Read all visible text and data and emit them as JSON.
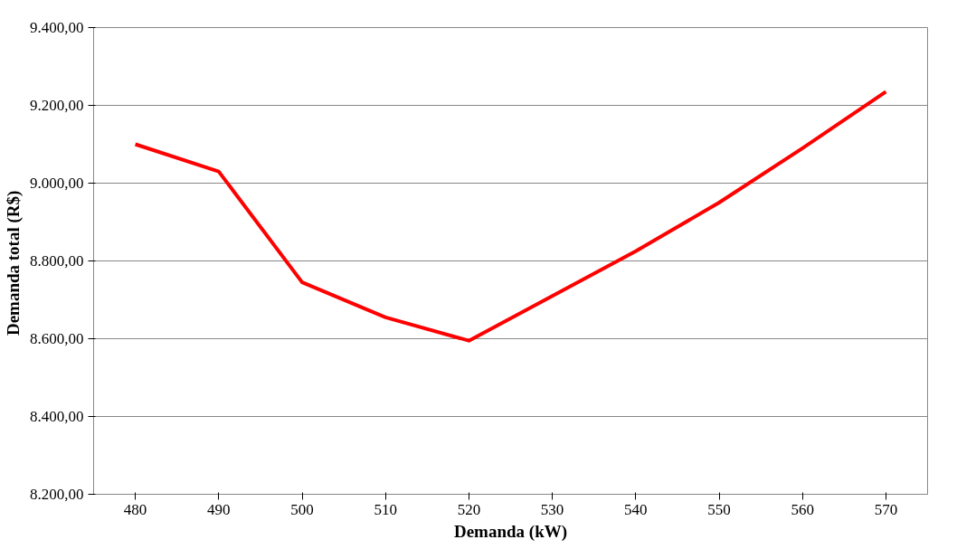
{
  "chart_data": {
    "type": "line",
    "xlabel": "Demanda (kW)",
    "ylabel": "Demanda total  (R$)",
    "categories": [
      "480",
      "490",
      "500",
      "510",
      "520",
      "530",
      "540",
      "550",
      "560",
      "570"
    ],
    "series": [
      {
        "color": "#ff0000",
        "values": [
          9100,
          9030,
          8745,
          8655,
          8595,
          8710,
          8825,
          8950,
          9090,
          9235
        ]
      }
    ],
    "ylim": [
      8200,
      9400
    ],
    "yticks": [
      {
        "value": 8200,
        "label": "8.200,00"
      },
      {
        "value": 8400,
        "label": "8.400,00"
      },
      {
        "value": 8600,
        "label": "8.600,00"
      },
      {
        "value": 8800,
        "label": "8.800,00"
      },
      {
        "value": 9000,
        "label": "9.000,00"
      },
      {
        "value": 9200,
        "label": "9.200,00"
      },
      {
        "value": 9400,
        "label": "9.400,00"
      }
    ],
    "grid": "y",
    "marker": "none",
    "line_style": "solid"
  }
}
